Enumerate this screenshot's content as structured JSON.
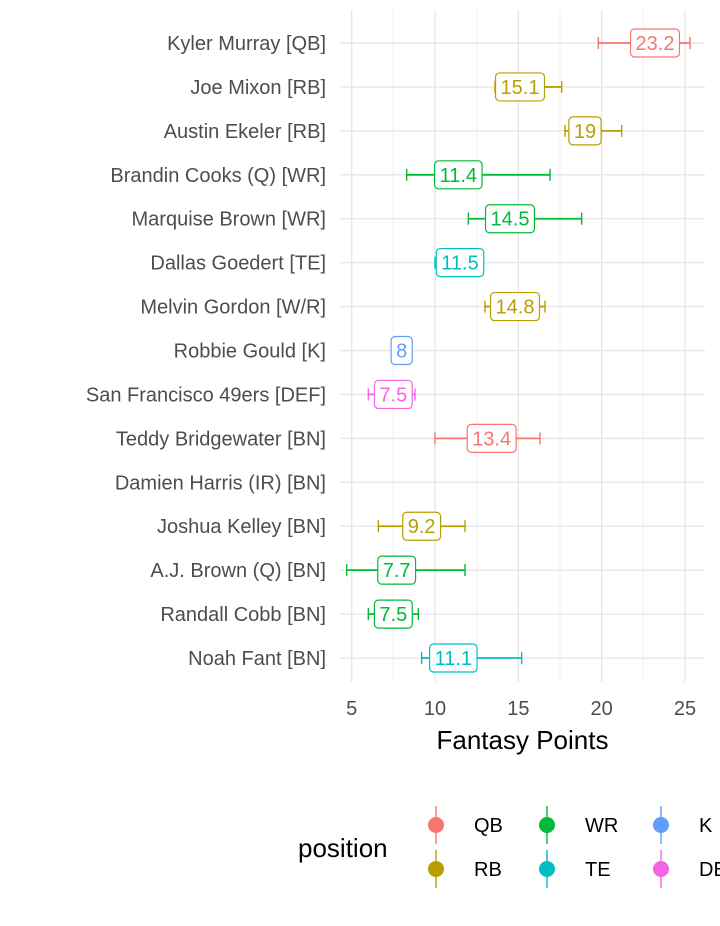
{
  "chart_data": {
    "type": "scatter",
    "xlabel": "Fantasy Points",
    "xlim": [
      4.3,
      26.2
    ],
    "x_ticks": [
      5,
      10,
      15,
      20,
      25
    ],
    "grid": true,
    "legend_position": "bottom",
    "legend_title": "position",
    "legend": [
      {
        "key": "QB",
        "label": "QB",
        "color": "#F8766D"
      },
      {
        "key": "RB",
        "label": "RB",
        "color": "#B79F00"
      },
      {
        "key": "WR",
        "label": "WR",
        "color": "#00BA38"
      },
      {
        "key": "TE",
        "label": "TE",
        "color": "#00BFC4"
      },
      {
        "key": "K",
        "label": "K",
        "color": "#619CFF"
      },
      {
        "key": "DEF",
        "label": "DEF",
        "color": "#F564E3"
      }
    ],
    "players": [
      {
        "name": "Kyler Murray [QB]",
        "position": "QB",
        "points": 23.2,
        "label": "23.2",
        "low": 19.8,
        "high": 25.3
      },
      {
        "name": "Joe Mixon [RB]",
        "position": "RB",
        "points": 15.1,
        "label": "15.1",
        "low": 13.6,
        "high": 17.6
      },
      {
        "name": "Austin Ekeler [RB]",
        "position": "RB",
        "points": 19,
        "label": "19",
        "low": 17.8,
        "high": 21.2
      },
      {
        "name": "Brandin Cooks (Q) [WR]",
        "position": "WR",
        "points": 11.4,
        "label": "11.4",
        "low": 8.3,
        "high": 16.9
      },
      {
        "name": "Marquise Brown [WR]",
        "position": "WR",
        "points": 14.5,
        "label": "14.5",
        "low": 12.0,
        "high": 18.8
      },
      {
        "name": "Dallas Goedert [TE]",
        "position": "TE",
        "points": 11.5,
        "label": "11.5",
        "low": 10.0,
        "high": 12.9
      },
      {
        "name": "Melvin Gordon [W/R]",
        "position": "RB",
        "points": 14.8,
        "label": "14.8",
        "low": 13.0,
        "high": 16.6
      },
      {
        "name": "Robbie Gould [K]",
        "position": "K",
        "points": 8,
        "label": "8",
        "low": 7.6,
        "high": 8.4
      },
      {
        "name": "San Francisco 49ers [DEF]",
        "position": "DEF",
        "points": 7.5,
        "label": "7.5",
        "low": 6.0,
        "high": 8.8
      },
      {
        "name": "Teddy Bridgewater [BN]",
        "position": "QB",
        "points": 13.4,
        "label": "13.4",
        "low": 10.0,
        "high": 16.3
      },
      {
        "name": "Damien Harris (IR) [BN]",
        "position": "RB",
        "points": null,
        "label": "",
        "low": null,
        "high": null
      },
      {
        "name": "Joshua Kelley [BN]",
        "position": "RB",
        "points": 9.2,
        "label": "9.2",
        "low": 6.6,
        "high": 11.8
      },
      {
        "name": "A.J. Brown (Q) [BN]",
        "position": "WR",
        "points": 7.7,
        "label": "7.7",
        "low": 4.7,
        "high": 11.8
      },
      {
        "name": "Randall Cobb [BN]",
        "position": "WR",
        "points": 7.5,
        "label": "7.5",
        "low": 6.0,
        "high": 9.0
      },
      {
        "name": "Noah Fant [BN]",
        "position": "TE",
        "points": 11.1,
        "label": "11.1",
        "low": 9.2,
        "high": 15.2
      }
    ]
  }
}
